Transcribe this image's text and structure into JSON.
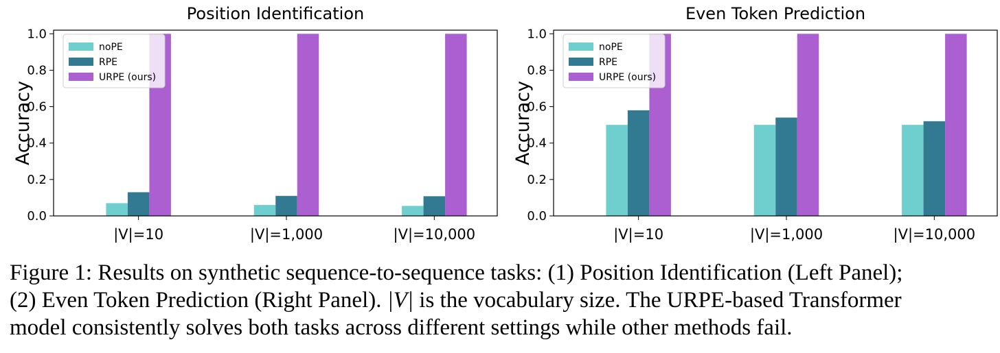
{
  "chart_data": [
    {
      "type": "bar",
      "title": "Position Identification",
      "xlabel": "",
      "ylabel": "Accuracy",
      "ylim": [
        0,
        1.02
      ],
      "yticks": [
        "0.0",
        "0.2",
        "0.4",
        "0.6",
        "0.8",
        "1.0"
      ],
      "categories": [
        "|V|=10",
        "|V|=1,000",
        "|V|=10,000"
      ],
      "series": [
        {
          "name": "noPE",
          "color": "#6ecfce",
          "values": [
            0.07,
            0.06,
            0.055
          ]
        },
        {
          "name": "RPE",
          "color": "#327a91",
          "values": [
            0.13,
            0.11,
            0.108
          ]
        },
        {
          "name": "URPE (ours)",
          "color": "#ab5fd1",
          "values": [
            1.0,
            1.0,
            1.0
          ]
        }
      ],
      "legend": "top-left",
      "grid": false
    },
    {
      "type": "bar",
      "title": "Even Token Prediction",
      "xlabel": "",
      "ylabel": "Accuracy",
      "ylim": [
        0,
        1.02
      ],
      "yticks": [
        "0.0",
        "0.2",
        "0.4",
        "0.6",
        "0.8",
        "1.0"
      ],
      "categories": [
        "|V|=10",
        "|V|=1,000",
        "|V|=10,000"
      ],
      "series": [
        {
          "name": "noPE",
          "color": "#6ecfce",
          "values": [
            0.5,
            0.5,
            0.5
          ]
        },
        {
          "name": "RPE",
          "color": "#327a91",
          "values": [
            0.58,
            0.54,
            0.52
          ]
        },
        {
          "name": "URPE (ours)",
          "color": "#ab5fd1",
          "values": [
            1.0,
            1.0,
            1.0
          ]
        }
      ],
      "legend": "top-left",
      "grid": false
    }
  ],
  "caption": {
    "line1": "Figure 1: Results on synthetic sequence-to-sequence tasks: (1) Position Identification (Left Panel);",
    "line2_pre": "(2) Even Token Prediction (Right Panel). ",
    "line2_math": "|V|",
    "line2_post": " is the vocabulary size. The URPE-based Transformer",
    "line3": "model consistently solves both tasks across different settings while other methods fail."
  }
}
